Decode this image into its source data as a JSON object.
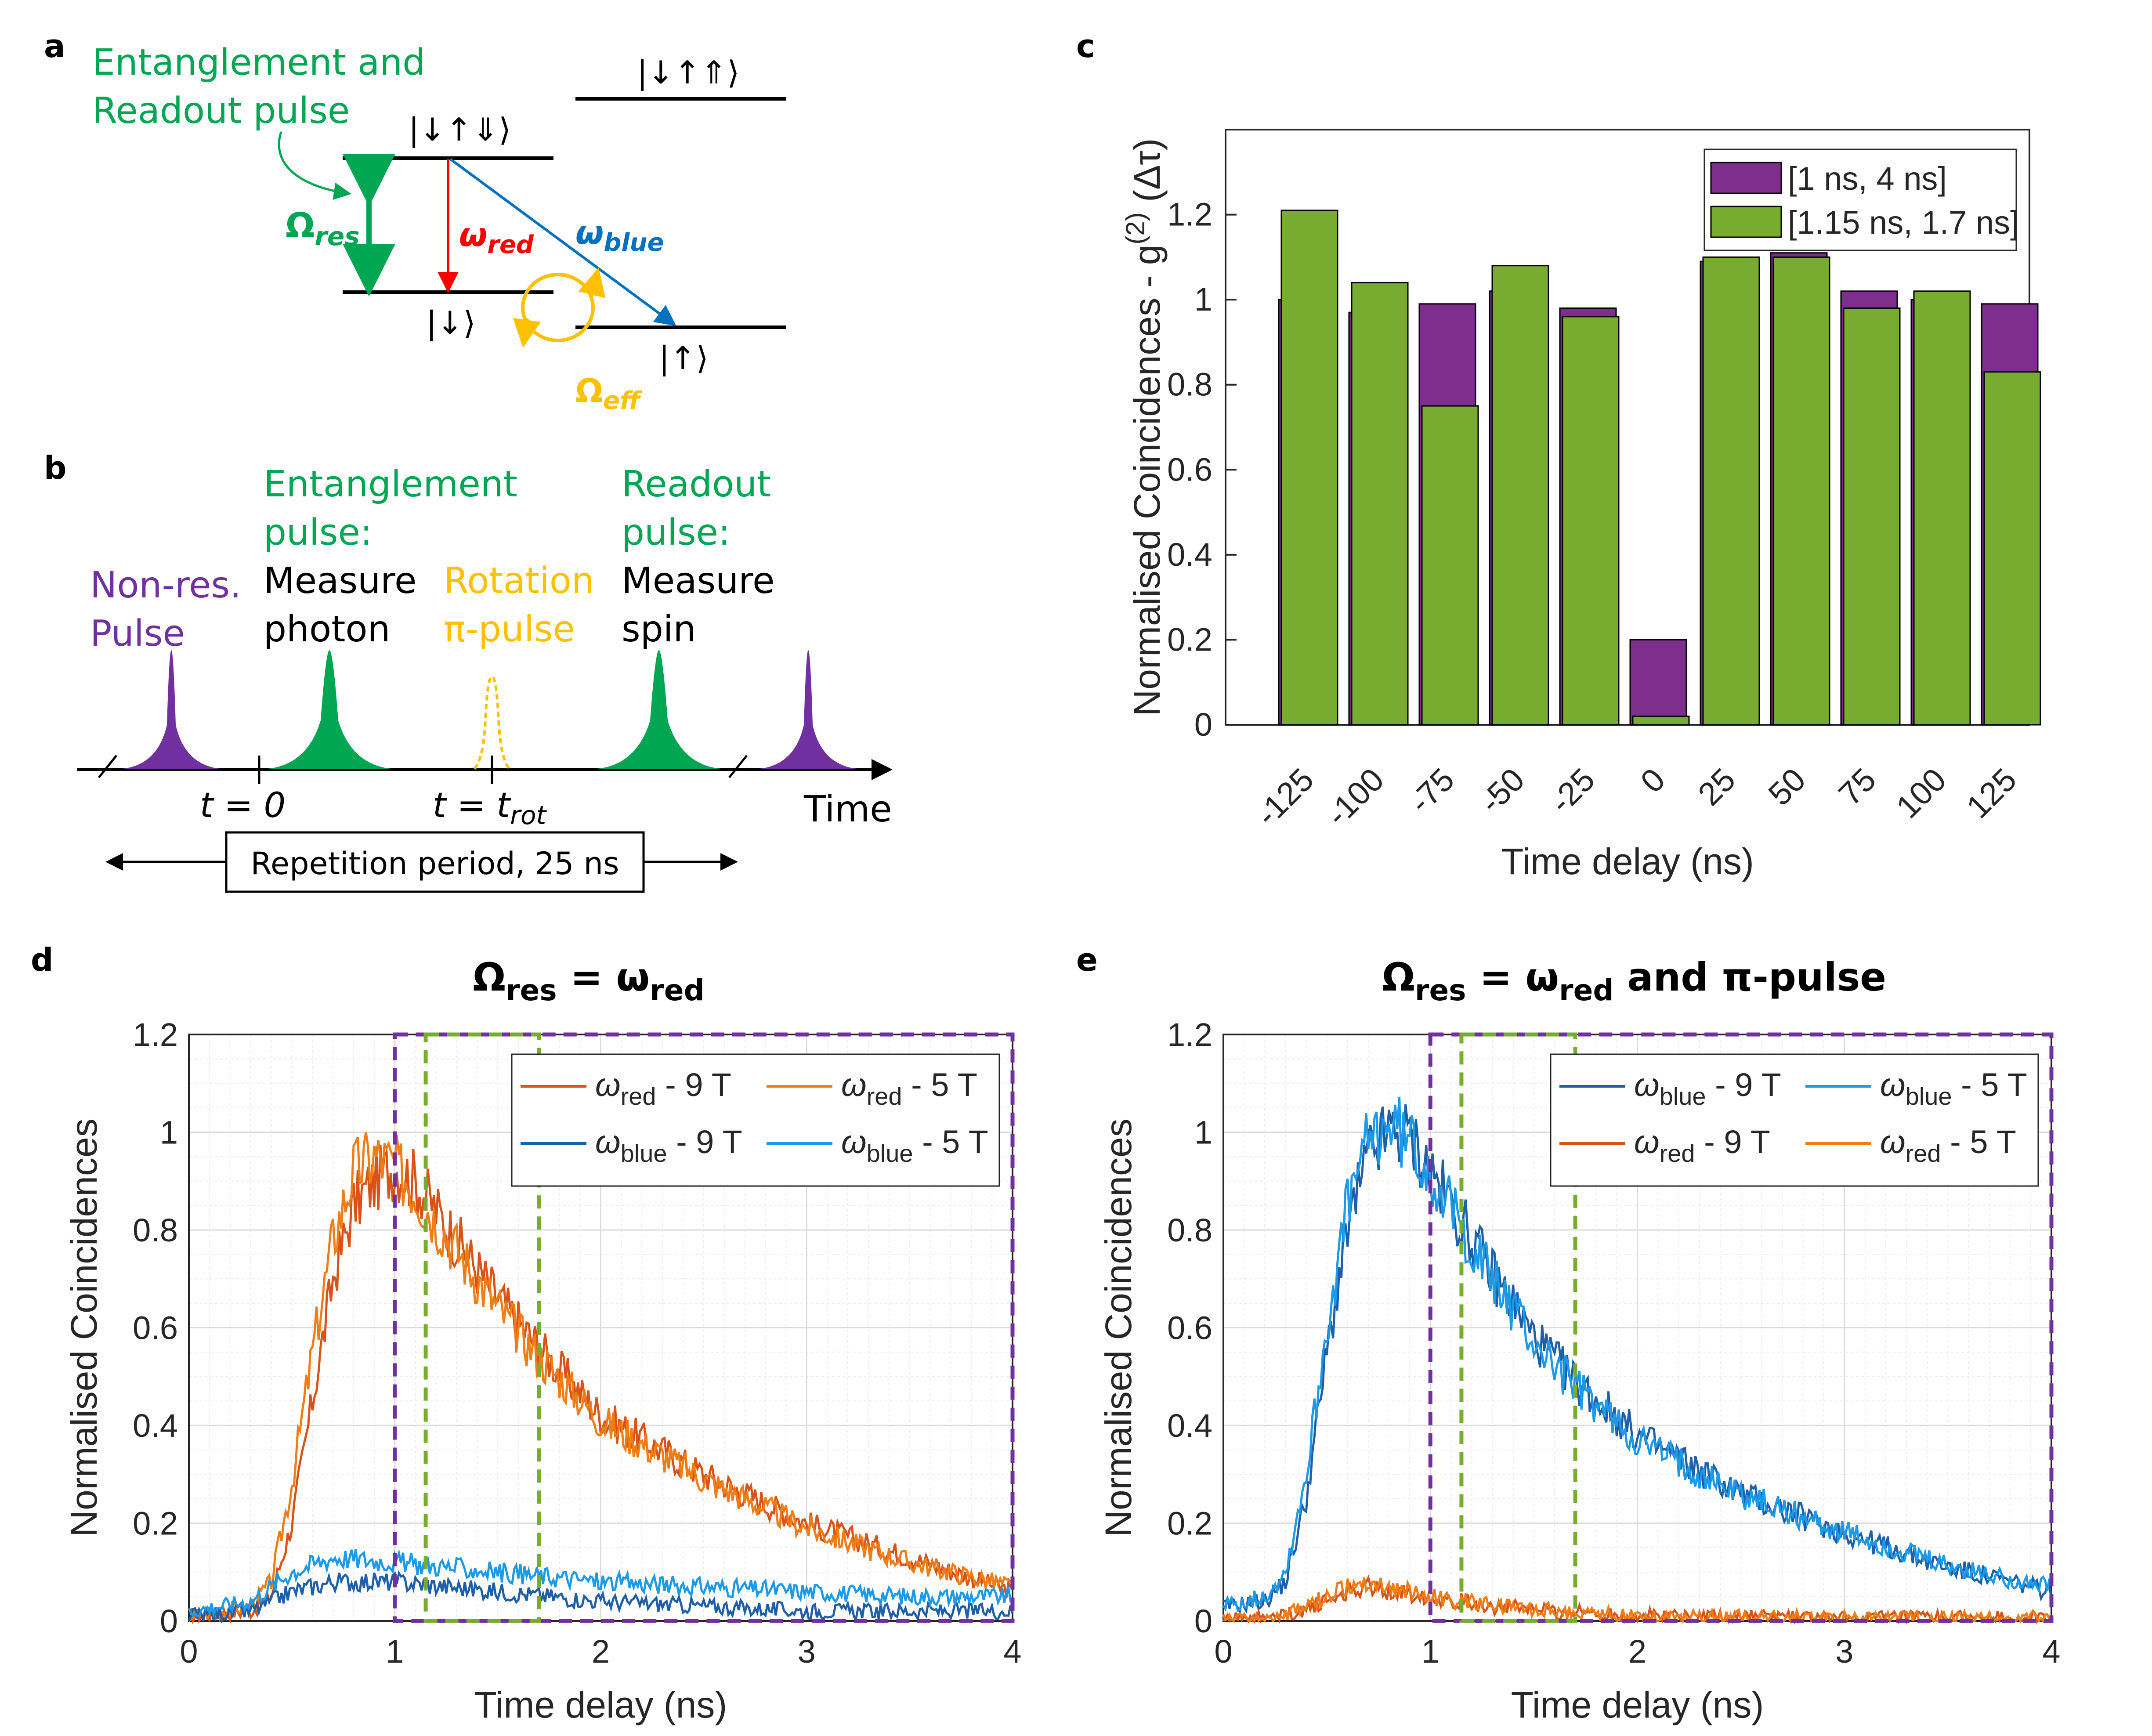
{
  "panel_labels": {
    "a": "a",
    "b": "b",
    "c": "c",
    "d": "d",
    "e": "e"
  },
  "panel_a": {
    "title_line1": "Entanglement and",
    "title_line2": "Readout pulse",
    "state_top_left": "|↓↑⇓⟩",
    "state_top_right": "|↓↑⇑⟩",
    "state_down": "|↓⟩",
    "state_up": "|↑⟩",
    "omega_res": "Ω",
    "omega_res_sub": "res",
    "omega_red": "ω",
    "omega_red_sub": "red",
    "omega_blue": "ω",
    "omega_blue_sub": "blue",
    "omega_eff": "Ω",
    "omega_eff_sub": "eff"
  },
  "panel_b": {
    "nonres_1": "Non-res.",
    "nonres_2": "Pulse",
    "ent_1": "Entanglement",
    "ent_2": "pulse:",
    "ent_3": "Measure",
    "ent_4": "photon",
    "rot_1": "Rotation",
    "rot_2": "π-pulse",
    "read_1": "Readout",
    "read_2": "pulse:",
    "read_3": "Measure",
    "read_4": "spin",
    "t0": "t = 0",
    "trot": "t = t",
    "trot_sub": "rot",
    "time": "Time",
    "period": "Repetition period, 25 ns"
  },
  "colors": {
    "green": "#00a651",
    "purple": "#7030a0",
    "yellow": "#ffc000",
    "red": "#ff0000",
    "blue": "#0070c0",
    "bar_purple": "#7e2f8e",
    "bar_green": "#77ac30",
    "dark_orange": "#d95319",
    "orange": "#f07c14",
    "dark_blue": "#1f5fa8",
    "light_blue": "#1a9ae8"
  },
  "chart_data": [
    {
      "id": "c",
      "type": "bar",
      "ylabel": "Normalised Coincidences - g",
      "ylabel_sup": "(2)",
      "ylabel_tail": " (Δτ)",
      "xlabel": "Time delay (ns)",
      "categories": [
        "-125",
        "-100",
        "-75",
        "-50",
        "-25",
        "0",
        "25",
        "50",
        "75",
        "100",
        "125"
      ],
      "ylim": [
        0,
        1.4
      ],
      "yticks": [
        "0",
        "0.2",
        "0.4",
        "0.6",
        "0.8",
        "1",
        "1.2"
      ],
      "series": [
        {
          "name": "[1 ns, 4 ns]",
          "values": [
            1.0,
            0.97,
            0.99,
            1.02,
            0.98,
            0.2,
            1.09,
            1.11,
            1.02,
            1.0,
            0.99
          ]
        },
        {
          "name": "[1.15 ns, 1.7 ns]",
          "values": [
            1.21,
            1.04,
            0.75,
            1.08,
            0.96,
            0.02,
            1.1,
            1.1,
            0.98,
            1.02,
            0.83
          ]
        }
      ],
      "legend": "top-right"
    },
    {
      "id": "d",
      "type": "line",
      "title": "Ω",
      "title_sub": "res",
      "title_mid": " = ω",
      "title_sub2": "red",
      "xlabel": "Time delay (ns)",
      "ylabel": "Normalised Coincidences",
      "xlim": [
        0,
        4
      ],
      "ylim": [
        0,
        1.2
      ],
      "xticks": [
        "0",
        "1",
        "2",
        "3",
        "4"
      ],
      "yticks": [
        "0",
        "0.2",
        "0.4",
        "0.6",
        "0.8",
        "1",
        "1.2"
      ],
      "windows": [
        {
          "name": "purple",
          "x": [
            1,
            4
          ]
        },
        {
          "name": "green",
          "x": [
            1.15,
            1.7
          ]
        }
      ],
      "series": [
        {
          "label": "ω",
          "sub": "red",
          "tail": " - 9 T",
          "color": "dark_orange",
          "amp": 0.93,
          "x": [
            0,
            0.3,
            0.4,
            0.5,
            0.6,
            0.7,
            0.8,
            0.9,
            1.0,
            1.1,
            1.2,
            1.3,
            1.4,
            1.5,
            1.7,
            2.0,
            2.5,
            3.0,
            3.5,
            4.0
          ],
          "y": [
            0.01,
            0.02,
            0.05,
            0.2,
            0.45,
            0.7,
            0.85,
            0.9,
            0.93,
            0.9,
            0.84,
            0.78,
            0.72,
            0.66,
            0.56,
            0.42,
            0.3,
            0.2,
            0.13,
            0.06
          ]
        },
        {
          "label": "ω",
          "sub": "red",
          "tail": " - 5 T",
          "color": "orange",
          "amp": 0.95,
          "x": [
            0,
            0.3,
            0.4,
            0.5,
            0.6,
            0.7,
            0.8,
            0.9,
            1.0,
            1.1,
            1.2,
            1.3,
            1.4,
            1.5,
            1.7,
            2.0,
            2.5,
            3.0,
            3.5,
            4.0
          ],
          "y": [
            0.01,
            0.03,
            0.08,
            0.28,
            0.55,
            0.78,
            0.92,
            0.95,
            0.93,
            0.88,
            0.82,
            0.76,
            0.7,
            0.64,
            0.54,
            0.41,
            0.29,
            0.19,
            0.12,
            0.07
          ]
        },
        {
          "label": "ω",
          "sub": "blue",
          "tail": " - 9 T",
          "color": "dark_blue",
          "x": [
            0,
            0.3,
            0.5,
            0.7,
            1.0,
            1.5,
            2.0,
            2.5,
            3.0,
            3.5,
            4.0
          ],
          "y": [
            0.01,
            0.02,
            0.06,
            0.08,
            0.08,
            0.06,
            0.04,
            0.03,
            0.02,
            0.02,
            0.02
          ]
        },
        {
          "label": "ω",
          "sub": "blue",
          "tail": " - 5 T",
          "color": "light_blue",
          "x": [
            0,
            0.3,
            0.5,
            0.7,
            1.0,
            1.5,
            2.0,
            2.5,
            3.0,
            3.5,
            4.0
          ],
          "y": [
            0.02,
            0.04,
            0.1,
            0.13,
            0.12,
            0.1,
            0.08,
            0.07,
            0.06,
            0.05,
            0.05
          ]
        }
      ],
      "legend": "top-right"
    },
    {
      "id": "e",
      "type": "line",
      "title": "Ω",
      "title_sub": "res",
      "title_mid": " = ω",
      "title_sub2": "red",
      "title_tail": " and π-pulse",
      "xlabel": "Time delay (ns)",
      "ylabel": "Normalised Coincidences",
      "xlim": [
        0,
        4
      ],
      "ylim": [
        0,
        1.2
      ],
      "xticks": [
        "0",
        "1",
        "2",
        "3",
        "4"
      ],
      "yticks": [
        "0",
        "0.2",
        "0.4",
        "0.6",
        "0.8",
        "1",
        "1.2"
      ],
      "windows": [
        {
          "name": "purple",
          "x": [
            1,
            4
          ]
        },
        {
          "name": "green",
          "x": [
            1.15,
            1.7
          ]
        }
      ],
      "series": [
        {
          "label": "ω",
          "sub": "blue",
          "tail": " - 9 T",
          "color": "dark_blue",
          "x": [
            0,
            0.2,
            0.3,
            0.4,
            0.5,
            0.6,
            0.7,
            0.8,
            0.9,
            1.0,
            1.1,
            1.2,
            1.3,
            1.4,
            1.5,
            1.7,
            2.0,
            2.5,
            3.0,
            3.5,
            4.0
          ],
          "y": [
            0.03,
            0.04,
            0.08,
            0.25,
            0.55,
            0.8,
            0.95,
            1.0,
            0.99,
            0.92,
            0.85,
            0.78,
            0.71,
            0.65,
            0.58,
            0.49,
            0.38,
            0.26,
            0.18,
            0.11,
            0.06
          ]
        },
        {
          "label": "ω",
          "sub": "blue",
          "tail": " - 5 T",
          "color": "light_blue",
          "x": [
            0,
            0.2,
            0.3,
            0.4,
            0.5,
            0.6,
            0.7,
            0.8,
            0.9,
            1.0,
            1.1,
            1.2,
            1.3,
            1.4,
            1.5,
            1.7,
            2.0,
            2.5,
            3.0,
            3.5,
            4.0
          ],
          "y": [
            0.03,
            0.05,
            0.1,
            0.3,
            0.6,
            0.85,
            0.98,
            1.02,
            0.98,
            0.92,
            0.84,
            0.77,
            0.7,
            0.64,
            0.57,
            0.48,
            0.37,
            0.26,
            0.18,
            0.11,
            0.07
          ]
        },
        {
          "label": "ω",
          "sub": "red",
          "tail": " - 9 T",
          "color": "dark_orange",
          "x": [
            0,
            0.3,
            0.5,
            0.6,
            0.7,
            0.8,
            1.0,
            1.3,
            1.6,
            2.0,
            2.5,
            3.0,
            3.5,
            4.0
          ],
          "y": [
            0.0,
            0.01,
            0.04,
            0.06,
            0.07,
            0.06,
            0.05,
            0.03,
            0.02,
            0.01,
            0.01,
            0.005,
            0.005,
            0.005
          ]
        },
        {
          "label": "ω",
          "sub": "red",
          "tail": " - 5 T",
          "color": "orange",
          "x": [
            0,
            0.3,
            0.5,
            0.6,
            0.7,
            0.8,
            1.0,
            1.3,
            1.6,
            2.0,
            2.5,
            3.0,
            3.5,
            4.0
          ],
          "y": [
            0.0,
            0.01,
            0.05,
            0.07,
            0.08,
            0.07,
            0.05,
            0.03,
            0.02,
            0.01,
            0.01,
            0.005,
            0.005,
            0.005
          ]
        }
      ],
      "legend": "top-right"
    }
  ]
}
